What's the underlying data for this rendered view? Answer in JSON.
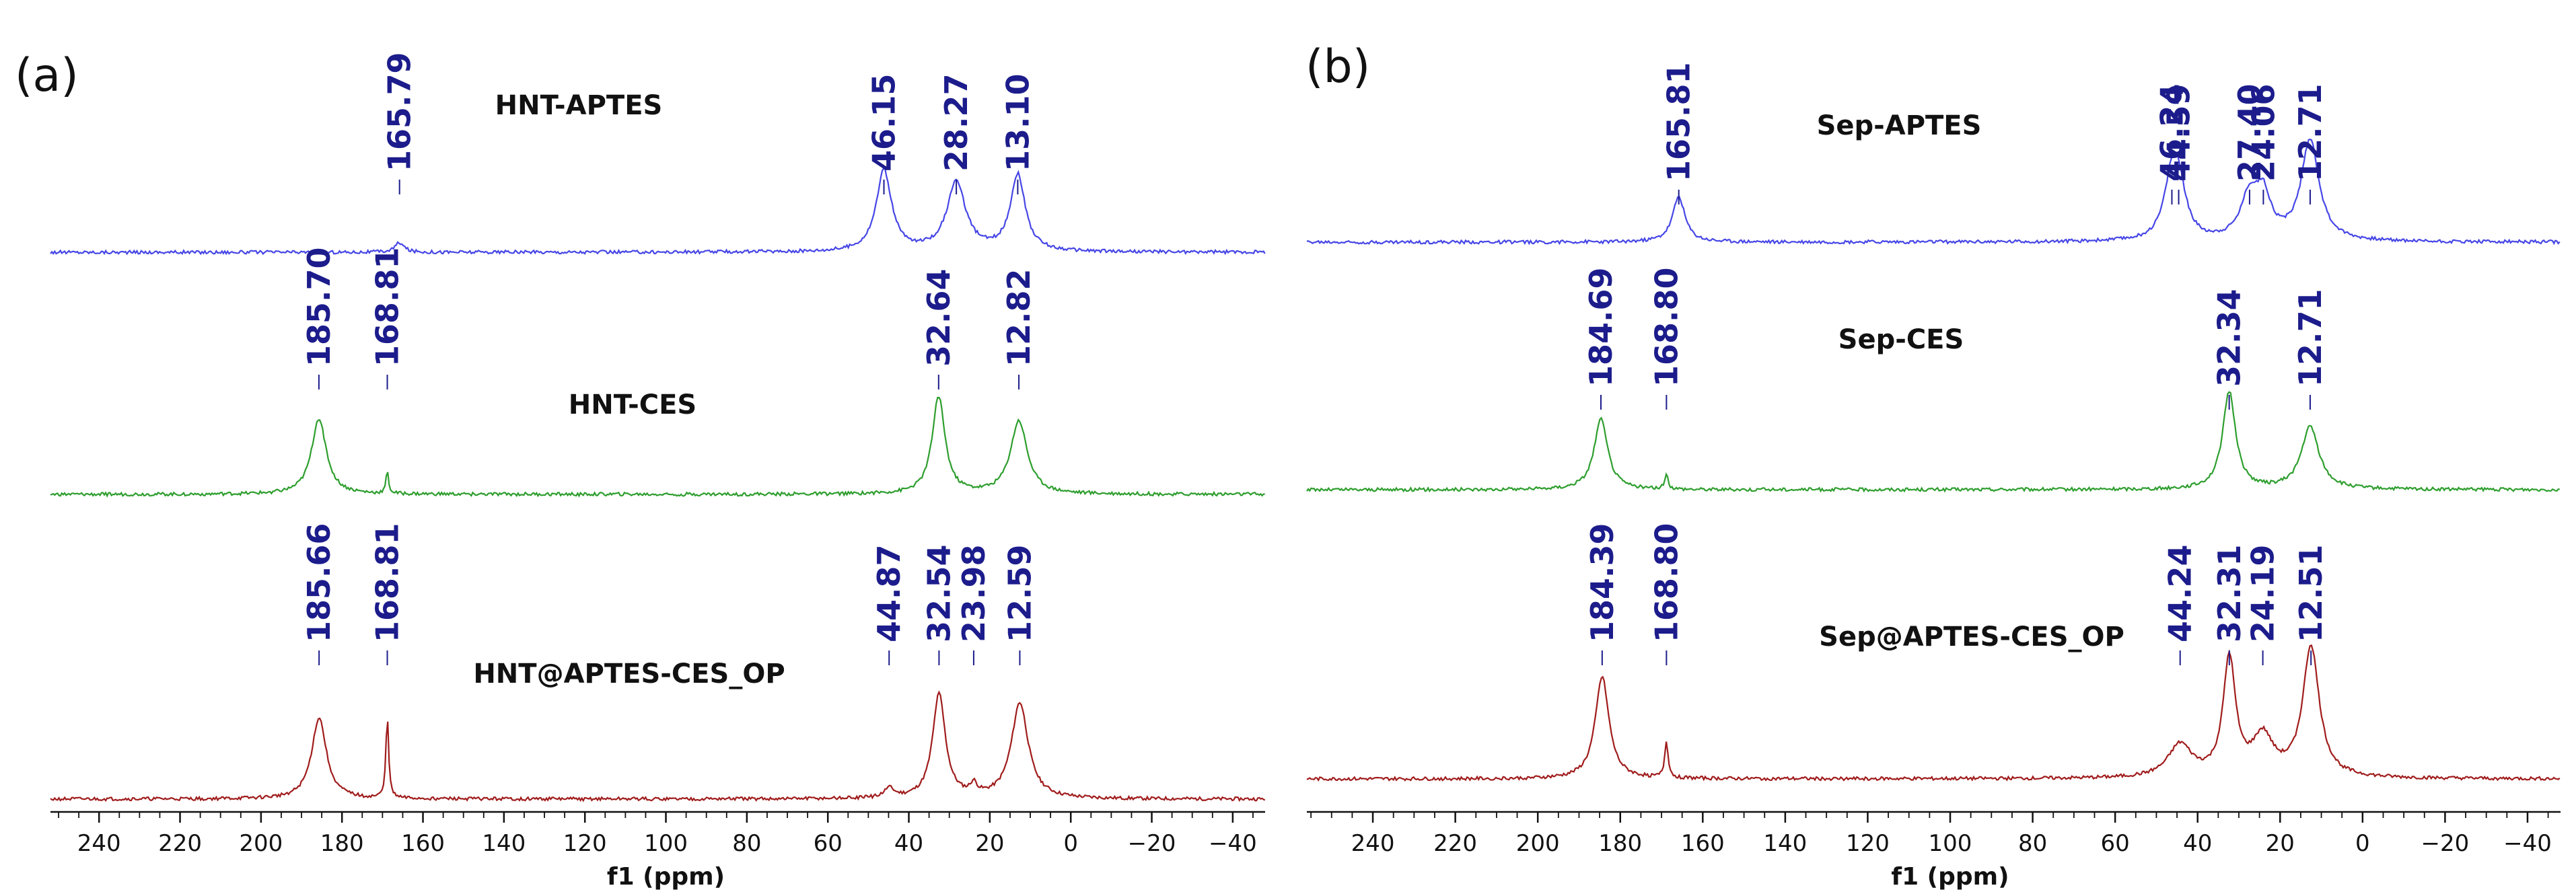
{
  "chart_data": [
    {
      "type": "line",
      "panel": "(a)",
      "xlabel": "f1 (ppm)",
      "xlim": [
        252,
        -48
      ],
      "xreversed": true,
      "xticks": [
        240,
        220,
        200,
        180,
        160,
        140,
        120,
        100,
        80,
        60,
        40,
        20,
        0,
        -20,
        -40
      ],
      "xtick_labels": [
        "240",
        "220",
        "200",
        "180",
        "160",
        "140",
        "120",
        "100",
        "80",
        "60",
        "40",
        "20",
        "0",
        "−20",
        "−40"
      ],
      "grid": false,
      "legend": "none",
      "series": [
        {
          "name": "HNT-APTES",
          "color": "#4646e6",
          "peaks": [
            {
              "ppm": 165.79,
              "label": "165.79",
              "height": 0.12,
              "width": 1.3
            },
            {
              "ppm": 46.15,
              "label": "46.15",
              "height": 1.0,
              "width": 2.3
            },
            {
              "ppm": 28.27,
              "label": "28.27",
              "height": 0.85,
              "width": 2.8
            },
            {
              "ppm": 13.1,
              "label": "13.10",
              "height": 0.95,
              "width": 2.2
            }
          ]
        },
        {
          "name": "HNT-CES",
          "color": "#2e9e2e",
          "peaks": [
            {
              "ppm": 185.7,
              "label": "185.70",
              "height": 0.78,
              "width": 2.2
            },
            {
              "ppm": 168.81,
              "label": "168.81",
              "height": 0.22,
              "width": 0.4
            },
            {
              "ppm": 32.64,
              "label": "32.64",
              "height": 1.0,
              "width": 1.9
            },
            {
              "ppm": 12.82,
              "label": "12.82",
              "height": 0.75,
              "width": 2.5
            }
          ]
        },
        {
          "name": "HNT@APTES-CES_OP",
          "color": "#a01c1c",
          "peaks": [
            {
              "ppm": 185.66,
              "label": "185.66",
              "height": 0.78,
              "width": 2.2
            },
            {
              "ppm": 168.81,
              "label": "168.81",
              "height": 0.8,
              "width": 0.4
            },
            {
              "ppm": 44.87,
              "label": "44.87",
              "height": 0.09,
              "width": 1.5
            },
            {
              "ppm": 32.54,
              "label": "32.54",
              "height": 1.0,
              "width": 1.9
            },
            {
              "ppm": 23.98,
              "label": "23.98",
              "height": 0.1,
              "width": 1.0
            },
            {
              "ppm": 12.59,
              "label": "12.59",
              "height": 0.92,
              "width": 2.5
            }
          ]
        }
      ]
    },
    {
      "type": "line",
      "panel": "(b)",
      "xlabel": "f1 (ppm)",
      "xlim": [
        256,
        -48
      ],
      "xreversed": true,
      "xticks": [
        240,
        220,
        200,
        180,
        160,
        140,
        120,
        100,
        80,
        60,
        40,
        20,
        0,
        -20,
        -40
      ],
      "xtick_labels": [
        "240",
        "220",
        "200",
        "180",
        "160",
        "140",
        "120",
        "100",
        "80",
        "60",
        "40",
        "20",
        "0",
        "−20",
        "−40"
      ],
      "grid": false,
      "legend": "none",
      "series": [
        {
          "name": "Sep-APTES",
          "color": "#4646e6",
          "peaks": [
            {
              "ppm": 165.81,
              "label": "165.81",
              "height": 0.45,
              "width": 1.8
            },
            {
              "ppm": 46.24,
              "label": "46.24",
              "height": 0.55,
              "width": 2.2
            },
            {
              "ppm": 44.59,
              "label": "44.59",
              "height": 0.45,
              "width": 2.2
            },
            {
              "ppm": 27.4,
              "label": "27.40",
              "height": 0.42,
              "width": 2.6
            },
            {
              "ppm": 24.06,
              "label": "24.06",
              "height": 0.4,
              "width": 2.2
            },
            {
              "ppm": 12.71,
              "label": "12.71",
              "height": 1.0,
              "width": 2.6
            }
          ]
        },
        {
          "name": "Sep-CES",
          "color": "#2e9e2e",
          "peaks": [
            {
              "ppm": 184.69,
              "label": "184.69",
              "height": 0.72,
              "width": 2.0
            },
            {
              "ppm": 168.8,
              "label": "168.80",
              "height": 0.14,
              "width": 0.5
            },
            {
              "ppm": 32.34,
              "label": "32.34",
              "height": 1.0,
              "width": 1.9
            },
            {
              "ppm": 12.71,
              "label": "12.71",
              "height": 0.64,
              "width": 2.6
            }
          ]
        },
        {
          "name": "Sep@APTES-CES_OP",
          "color": "#a01c1c",
          "peaks": [
            {
              "ppm": 184.39,
              "label": "184.39",
              "height": 0.78,
              "width": 2.0
            },
            {
              "ppm": 168.8,
              "label": "168.80",
              "height": 0.28,
              "width": 0.5
            },
            {
              "ppm": 44.24,
              "label": "44.24",
              "height": 0.25,
              "width": 3.5
            },
            {
              "ppm": 32.31,
              "label": "32.31",
              "height": 0.9,
              "width": 1.8
            },
            {
              "ppm": 24.19,
              "label": "24.19",
              "height": 0.3,
              "width": 3.0
            },
            {
              "ppm": 12.51,
              "label": "12.51",
              "height": 1.0,
              "width": 2.4
            }
          ]
        }
      ]
    }
  ]
}
